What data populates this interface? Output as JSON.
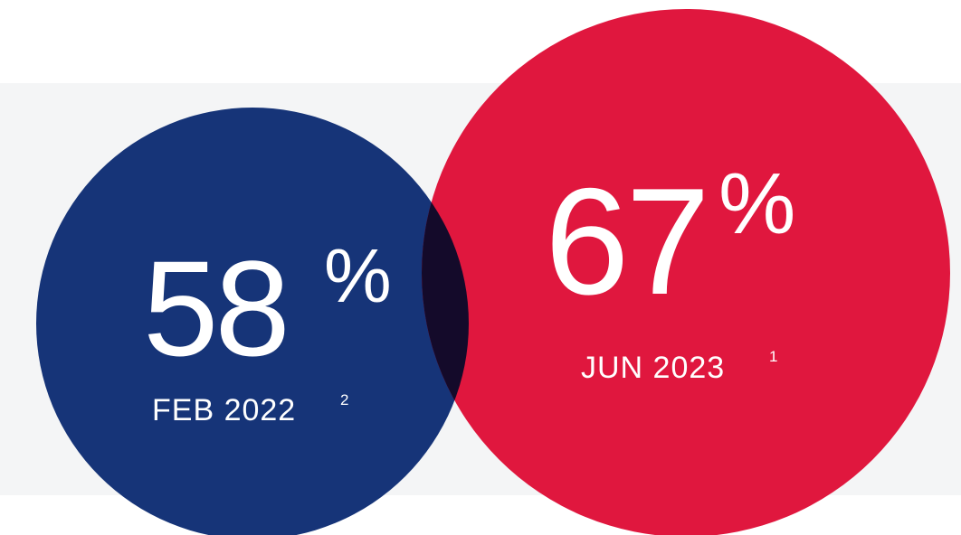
{
  "stats": [
    {
      "value": 58,
      "unit": "%",
      "date": "FEB 2022",
      "note": "2"
    },
    {
      "value": 67,
      "unit": "%",
      "date": "JUN 2023",
      "note": "1"
    }
  ]
}
